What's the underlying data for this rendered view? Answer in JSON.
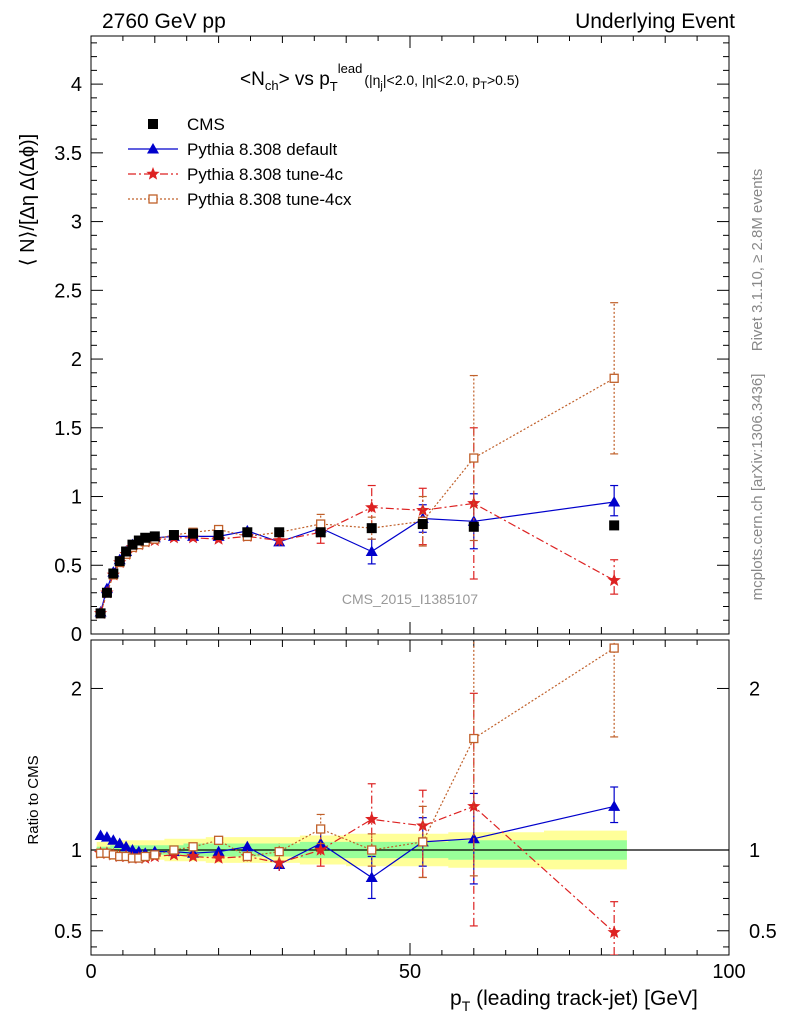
{
  "header": {
    "left": "2760 GeV pp",
    "right": "Underlying Event"
  },
  "side_labels": {
    "rivet": "Rivet 3.1.10, ≥ 2.8M events",
    "mcplots": "mcplots.cern.ch [arXiv:1306.3436]"
  },
  "chart_data": {
    "type": "scatter",
    "title_main": "<N",
    "title_main_sub": "ch",
    "title_main_mid": "> vs p",
    "title_main_sub2": "T",
    "title_main_sup": "lead",
    "title_cuts": "(|η",
    "title_cuts_sub": "j",
    "title_cuts_mid": "|<2.0, |η|<2.0, p",
    "title_cuts_sub2": "T",
    "title_cuts_end": ">0.5)",
    "watermark": "CMS_2015_I1385107",
    "xlabel": "p",
    "xlabel_sub": "T",
    "xlabel_rest": " (leading track-jet) [GeV]",
    "ylabel_main": "⟨ N⟩/[Δη Δ(Δϕ)]",
    "ylabel_ratio": "Ratio to CMS",
    "xlim": [
      0,
      100
    ],
    "ylim_main": [
      0,
      4.35
    ],
    "ylim_ratio": [
      0.35,
      2.3
    ],
    "xticks": [
      0,
      50,
      100
    ],
    "yticks_main": [
      0,
      0.5,
      1,
      1.5,
      2,
      2.5,
      3,
      3.5,
      4
    ],
    "yticks_ratio": [
      0.5,
      1,
      2
    ],
    "legend_position": "top-left",
    "x": [
      1.5,
      2.5,
      3.5,
      4.5,
      5.5,
      6.5,
      7.5,
      8.5,
      10,
      13,
      16,
      20,
      24.5,
      29.5,
      36,
      44,
      52,
      60,
      82
    ],
    "series": [
      {
        "name": "CMS",
        "color": "#000000",
        "marker": "square",
        "values": [
          0.15,
          0.3,
          0.44,
          0.53,
          0.6,
          0.65,
          0.68,
          0.7,
          0.71,
          0.72,
          0.73,
          0.72,
          0.74,
          0.74,
          0.74,
          0.77,
          0.8,
          0.78,
          0.79
        ]
      },
      {
        "name": "Pythia 8.308 default",
        "color": "#0000cc",
        "marker": "triangle",
        "values": [
          0.16,
          0.33,
          0.45,
          0.54,
          0.6,
          0.65,
          0.67,
          0.69,
          0.7,
          0.71,
          0.71,
          0.71,
          0.75,
          0.67,
          0.77,
          0.6,
          0.84,
          0.82,
          0.96
        ],
        "err_low": [
          0.01,
          0.01,
          0.01,
          0.01,
          0.01,
          0.01,
          0.01,
          0.01,
          0.01,
          0.01,
          0.02,
          0.02,
          0.02,
          0.03,
          0.04,
          0.09,
          0.1,
          0.2,
          0.1
        ],
        "err_high": [
          0.01,
          0.01,
          0.01,
          0.01,
          0.01,
          0.01,
          0.01,
          0.01,
          0.01,
          0.01,
          0.02,
          0.02,
          0.02,
          0.03,
          0.04,
          0.09,
          0.1,
          0.2,
          0.12
        ],
        "ratio": [
          1.09,
          1.08,
          1.06,
          1.04,
          1.02,
          1.0,
          0.99,
          0.98,
          0.99,
          0.99,
          0.98,
          0.99,
          1.02,
          0.91,
          1.04,
          0.83,
          1.05,
          1.07,
          1.27
        ],
        "ratio_err_low": [
          0.01,
          0.01,
          0.01,
          0.01,
          0.01,
          0.01,
          0.01,
          0.01,
          0.01,
          0.01,
          0.02,
          0.02,
          0.03,
          0.04,
          0.06,
          0.13,
          0.15,
          0.28,
          0.1
        ],
        "ratio_err_high": [
          0.01,
          0.01,
          0.01,
          0.01,
          0.01,
          0.01,
          0.01,
          0.01,
          0.01,
          0.01,
          0.02,
          0.02,
          0.03,
          0.04,
          0.06,
          0.13,
          0.15,
          0.28,
          0.12
        ]
      },
      {
        "name": "Pythia 8.308 tune-4c",
        "color": "#dd2222",
        "marker": "star",
        "values": [
          0.15,
          0.3,
          0.43,
          0.52,
          0.58,
          0.63,
          0.65,
          0.67,
          0.68,
          0.7,
          0.7,
          0.69,
          0.71,
          0.68,
          0.74,
          0.92,
          0.9,
          0.95,
          0.39
        ],
        "err_low": [
          0.01,
          0.01,
          0.01,
          0.01,
          0.01,
          0.01,
          0.01,
          0.01,
          0.01,
          0.01,
          0.02,
          0.02,
          0.03,
          0.04,
          0.08,
          0.15,
          0.25,
          0.55,
          0.1
        ],
        "err_high": [
          0.01,
          0.01,
          0.01,
          0.01,
          0.01,
          0.01,
          0.01,
          0.01,
          0.01,
          0.01,
          0.02,
          0.02,
          0.03,
          0.04,
          0.08,
          0.16,
          0.16,
          0.55,
          0.15
        ],
        "ratio": [
          0.98,
          0.98,
          0.97,
          0.96,
          0.96,
          0.95,
          0.95,
          0.95,
          0.96,
          0.97,
          0.96,
          0.95,
          0.96,
          0.92,
          1.0,
          1.19,
          1.15,
          1.27,
          0.49
        ],
        "ratio_err_low": [
          0.01,
          0.01,
          0.01,
          0.01,
          0.01,
          0.01,
          0.01,
          0.01,
          0.01,
          0.01,
          0.02,
          0.02,
          0.03,
          0.05,
          0.1,
          0.2,
          0.32,
          0.74,
          0.14
        ],
        "ratio_err_high": [
          0.01,
          0.01,
          0.01,
          0.01,
          0.01,
          0.01,
          0.01,
          0.01,
          0.01,
          0.01,
          0.02,
          0.02,
          0.03,
          0.05,
          0.12,
          0.22,
          0.22,
          0.7,
          0.19
        ]
      },
      {
        "name": "Pythia 8.308 tune-4cx",
        "color": "#c0602a",
        "marker": "open-square",
        "values": [
          0.15,
          0.3,
          0.43,
          0.52,
          0.58,
          0.63,
          0.65,
          0.67,
          0.69,
          0.72,
          0.74,
          0.76,
          0.71,
          0.74,
          0.8,
          0.77,
          0.82,
          1.28,
          1.86
        ],
        "err_low": [
          0.01,
          0.01,
          0.01,
          0.01,
          0.01,
          0.01,
          0.01,
          0.01,
          0.01,
          0.01,
          0.02,
          0.02,
          0.03,
          0.04,
          0.07,
          0.08,
          0.18,
          0.6,
          0.55
        ],
        "err_high": [
          0.01,
          0.01,
          0.01,
          0.01,
          0.01,
          0.01,
          0.01,
          0.01,
          0.01,
          0.01,
          0.02,
          0.02,
          0.03,
          0.04,
          0.07,
          0.08,
          0.18,
          0.6,
          0.55
        ],
        "ratio": [
          0.98,
          0.98,
          0.97,
          0.96,
          0.96,
          0.95,
          0.95,
          0.96,
          0.97,
          1.0,
          1.02,
          1.06,
          0.96,
          0.99,
          1.13,
          1.0,
          1.05,
          1.69,
          2.25
        ],
        "ratio_err_low": [
          0.01,
          0.01,
          0.01,
          0.01,
          0.01,
          0.01,
          0.01,
          0.01,
          0.01,
          0.01,
          0.02,
          0.02,
          0.03,
          0.05,
          0.09,
          0.1,
          0.22,
          0.85,
          0.55
        ],
        "ratio_err_high": [
          0.01,
          0.01,
          0.01,
          0.01,
          0.01,
          0.01,
          0.01,
          0.01,
          0.01,
          0.01,
          0.02,
          0.02,
          0.03,
          0.05,
          0.09,
          0.1,
          0.22,
          0.85,
          0.55
        ]
      }
    ],
    "band_colors": {
      "outer": "#ffff99",
      "inner": "#99ff99"
    },
    "band_outer_half": [
      0.05,
      0.05,
      0.06,
      0.06,
      0.06,
      0.06,
      0.06,
      0.06,
      0.06,
      0.07,
      0.07,
      0.08,
      0.08,
      0.08,
      0.09,
      0.1,
      0.1,
      0.11,
      0.12
    ],
    "band_inner_half": [
      0.02,
      0.02,
      0.03,
      0.03,
      0.03,
      0.03,
      0.03,
      0.03,
      0.03,
      0.03,
      0.04,
      0.04,
      0.04,
      0.04,
      0.05,
      0.05,
      0.05,
      0.06,
      0.06
    ]
  }
}
